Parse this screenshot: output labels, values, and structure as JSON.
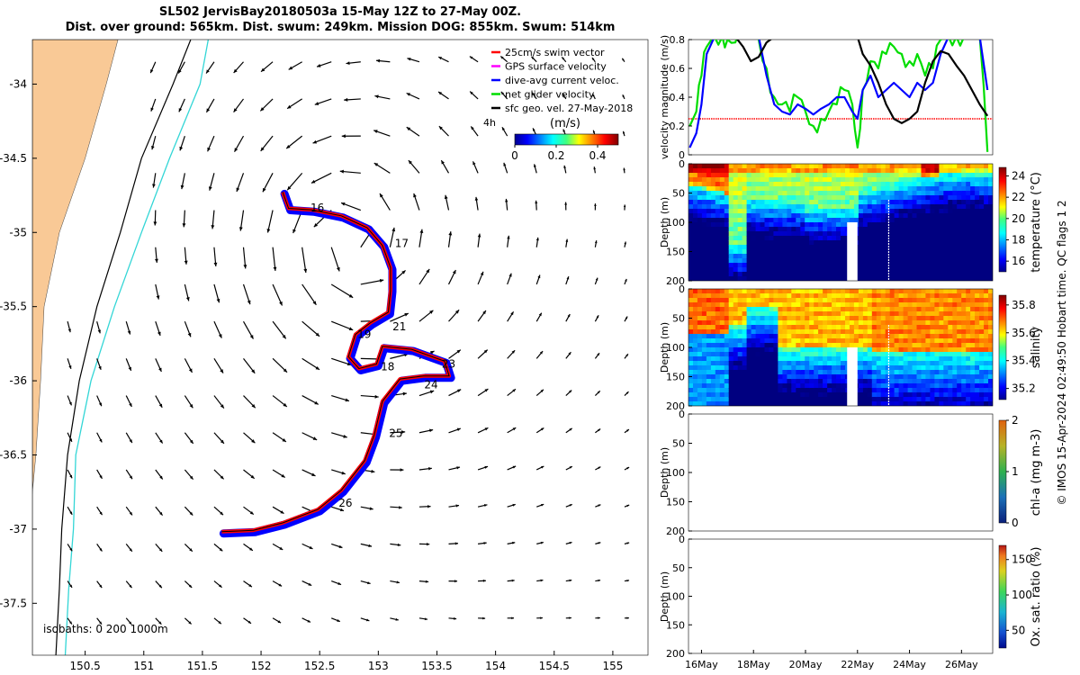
{
  "title": {
    "line1": "SL502 JervisBay20180503a 15-May 12Z to 27-May 00Z.",
    "line2": "Dist. over ground: 565km. Dist. swum: 249km. Mission DOG: 855km. Swum: 514km"
  },
  "footer": "© IMOS 15-Apr-2024 02:49:50 Hobart time. QC flags 1  2",
  "colors": {
    "land": "#f9c996",
    "isobath_200": "#000000",
    "isobath_1000": "#33d6d6",
    "track_outline": "#ff0000",
    "track_fill": "#0000ff",
    "swim_vector": "#ff0000",
    "gps_velocity": "#ff00ff",
    "dive_avg": "#0000ff",
    "net_glider": "#00dd00",
    "geo_vel": "#000000"
  },
  "chart_data": [
    {
      "type": "map",
      "x_ticks": [
        "150.5",
        "151",
        "151.5",
        "152",
        "152.5",
        "153",
        "153.5",
        "154",
        "154.5",
        "155"
      ],
      "y_ticks": [
        "-34",
        "-34.5",
        "-35",
        "-35.5",
        "-36",
        "-36.5",
        "-37",
        "-37.5"
      ],
      "xlim": [
        150.05,
        155.3
      ],
      "ylim": [
        -37.85,
        -33.7
      ],
      "legend": {
        "placement": "top-right",
        "entries": [
          {
            "label": "25cm/s swim vector",
            "color": "#ff0000"
          },
          {
            "label": "GPS surface velocity",
            "color": "#ff00ff"
          },
          {
            "label": "dive-avg current veloc.",
            "color": "#0000ff"
          },
          {
            "label": "net glider velocity",
            "color": "#00dd00"
          },
          {
            "label": "sfc geo. vel. 27-May-2018",
            "color": "#000000"
          }
        ],
        "extra_label": "4h"
      },
      "colorbar": {
        "label": "(m/s)",
        "ticks": [
          "0",
          "0.2",
          "0.4"
        ],
        "range": [
          0,
          0.5
        ]
      },
      "isobaths_label": "isobaths: 0   200  1000m",
      "day_labels": [
        {
          "day": "16",
          "lon": 152.48,
          "lat": -34.86
        },
        {
          "day": "17",
          "lon": 153.2,
          "lat": -35.1
        },
        {
          "day": "18",
          "lon": 153.08,
          "lat": -35.93
        },
        {
          "day": "19",
          "lon": 152.88,
          "lat": -35.71
        },
        {
          "day": "21",
          "lon": 153.18,
          "lat": -35.66
        },
        {
          "day": "23",
          "lon": 153.6,
          "lat": -35.91
        },
        {
          "day": "24",
          "lon": 153.45,
          "lat": -36.05
        },
        {
          "day": "25",
          "lon": 153.15,
          "lat": -36.38
        },
        {
          "day": "26",
          "lon": 152.72,
          "lat": -36.85
        }
      ],
      "track": [
        [
          152.2,
          -34.74
        ],
        [
          152.25,
          -34.85
        ],
        [
          152.45,
          -34.86
        ],
        [
          152.7,
          -34.9
        ],
        [
          152.92,
          -34.98
        ],
        [
          153.05,
          -35.1
        ],
        [
          153.12,
          -35.25
        ],
        [
          153.12,
          -35.4
        ],
        [
          153.1,
          -35.55
        ],
        [
          152.95,
          -35.62
        ],
        [
          152.82,
          -35.7
        ],
        [
          152.76,
          -35.85
        ],
        [
          152.85,
          -35.93
        ],
        [
          153.0,
          -35.9
        ],
        [
          153.05,
          -35.78
        ],
        [
          153.3,
          -35.8
        ],
        [
          153.58,
          -35.88
        ],
        [
          153.62,
          -35.98
        ],
        [
          153.4,
          -35.98
        ],
        [
          153.2,
          -36.0
        ],
        [
          153.05,
          -36.15
        ],
        [
          152.98,
          -36.38
        ],
        [
          152.9,
          -36.55
        ],
        [
          152.7,
          -36.75
        ],
        [
          152.5,
          -36.88
        ],
        [
          152.2,
          -36.97
        ],
        [
          151.95,
          -37.02
        ],
        [
          151.68,
          -37.03
        ]
      ],
      "coast_lons": [
        [
          -33.7,
          150.78
        ],
        [
          -34.0,
          150.68
        ],
        [
          -34.5,
          150.5
        ],
        [
          -35.0,
          150.28
        ],
        [
          -35.5,
          150.15
        ],
        [
          -36.0,
          150.12
        ],
        [
          -36.5,
          150.08
        ],
        [
          -37.0,
          150.02
        ],
        [
          -37.85,
          150.0
        ]
      ],
      "isobath200_lons": [
        [
          -33.7,
          151.4
        ],
        [
          -34.0,
          151.25
        ],
        [
          -34.5,
          150.98
        ],
        [
          -35.0,
          150.8
        ],
        [
          -35.5,
          150.6
        ],
        [
          -36.0,
          150.45
        ],
        [
          -36.5,
          150.35
        ],
        [
          -37.0,
          150.3
        ],
        [
          -37.4,
          150.28
        ],
        [
          -37.85,
          150.25
        ]
      ],
      "isobath1000_lons": [
        [
          -33.7,
          151.55
        ],
        [
          -34.0,
          151.48
        ],
        [
          -34.5,
          151.22
        ],
        [
          -35.0,
          150.98
        ],
        [
          -35.5,
          150.75
        ],
        [
          -36.0,
          150.55
        ],
        [
          -36.5,
          150.42
        ],
        [
          -37.0,
          150.4
        ],
        [
          -37.4,
          150.36
        ],
        [
          -37.85,
          150.33
        ]
      ],
      "eddy_center": [
        152.75,
        -35.05
      ]
    },
    {
      "type": "line",
      "ylabel": "velocity magnitude (m/s)",
      "ylim": [
        0,
        0.8
      ],
      "y_ticks": [
        "0",
        "0.2",
        "0.4",
        "0.6",
        "0.8"
      ],
      "xlim": [
        15.5,
        27.2
      ],
      "swim_level": 0.25,
      "series": [
        {
          "color": "#00dd00",
          "x": [
            15.55,
            15.8,
            16.0,
            16.2,
            16.5,
            16.8,
            17.0,
            17.3,
            17.6,
            17.9,
            18.2,
            18.5,
            18.8,
            19.1,
            19.4,
            19.7,
            20.0,
            20.3,
            20.6,
            20.9,
            21.2,
            21.5,
            21.8,
            22.0,
            22.2,
            22.5,
            22.8,
            23.1,
            23.4,
            23.7,
            24.0,
            24.3,
            24.6,
            24.9,
            25.2,
            25.5,
            25.8,
            26.1,
            26.4,
            26.7,
            27.0
          ],
          "y": [
            0.2,
            0.3,
            0.55,
            0.75,
            0.82,
            0.82,
            0.8,
            0.78,
            0.82,
            0.82,
            0.8,
            0.6,
            0.4,
            0.35,
            0.3,
            0.4,
            0.3,
            0.2,
            0.25,
            0.3,
            0.35,
            0.45,
            0.35,
            0.05,
            0.45,
            0.65,
            0.6,
            0.7,
            0.75,
            0.7,
            0.65,
            0.7,
            0.55,
            0.6,
            0.8,
            0.82,
            0.82,
            0.82,
            0.82,
            0.82,
            0.02
          ]
        },
        {
          "color": "#0000ff",
          "x": [
            15.55,
            15.8,
            16.0,
            16.2,
            16.5,
            16.8,
            17.0,
            17.3,
            17.6,
            17.9,
            18.2,
            18.5,
            18.8,
            19.1,
            19.4,
            19.7,
            20.0,
            20.3,
            20.6,
            20.9,
            21.2,
            21.5,
            21.8,
            22.0,
            22.2,
            22.5,
            22.8,
            23.1,
            23.4,
            23.7,
            24.0,
            24.3,
            24.6,
            24.9,
            25.2,
            25.5,
            25.8,
            26.1,
            26.4,
            26.7,
            27.0
          ],
          "y": [
            0.05,
            0.15,
            0.35,
            0.7,
            0.82,
            0.82,
            0.82,
            0.82,
            0.82,
            0.82,
            0.82,
            0.55,
            0.35,
            0.3,
            0.28,
            0.35,
            0.32,
            0.28,
            0.32,
            0.35,
            0.4,
            0.4,
            0.3,
            0.25,
            0.45,
            0.55,
            0.4,
            0.45,
            0.5,
            0.45,
            0.4,
            0.5,
            0.45,
            0.5,
            0.7,
            0.82,
            0.82,
            0.82,
            0.82,
            0.82,
            0.45
          ]
        },
        {
          "color": "#000000",
          "x": [
            15.55,
            15.8,
            16.0,
            16.2,
            16.5,
            16.8,
            17.0,
            17.3,
            17.6,
            17.9,
            18.2,
            18.5,
            18.8,
            19.1,
            19.4,
            19.7,
            20.0,
            20.3,
            20.6,
            20.9,
            21.2,
            21.5,
            21.8,
            22.0,
            22.2,
            22.5,
            22.8,
            23.1,
            23.4,
            23.7,
            24.0,
            24.3,
            24.6,
            24.9,
            25.2,
            25.5,
            25.8,
            26.1,
            26.4,
            26.7,
            27.0
          ],
          "y": [
            0.82,
            0.82,
            0.82,
            0.82,
            0.82,
            0.82,
            0.82,
            0.82,
            0.75,
            0.65,
            0.68,
            0.78,
            0.82,
            0.82,
            0.82,
            0.82,
            0.82,
            0.82,
            0.82,
            0.82,
            0.82,
            0.82,
            0.82,
            0.82,
            0.7,
            0.62,
            0.5,
            0.35,
            0.25,
            0.22,
            0.25,
            0.3,
            0.5,
            0.65,
            0.72,
            0.7,
            0.62,
            0.55,
            0.45,
            0.35,
            0.27
          ]
        }
      ]
    },
    {
      "type": "heatmap",
      "ylabel": "Depth (m)",
      "cbar_label": "temperature (°C)",
      "cbar_ticks": [
        "16",
        "18",
        "20",
        "22",
        "24"
      ],
      "vmin": 14.5,
      "vmax": 24.5,
      "y_ticks": [
        "0",
        "50",
        "100",
        "150",
        "200"
      ],
      "gap_days": [
        21.6,
        22.0
      ],
      "gap_depth": [
        100,
        200
      ]
    },
    {
      "type": "heatmap",
      "ylabel": "Depth (m)",
      "cbar_label": "salinity",
      "cbar_ticks": [
        "35.2",
        "35.4",
        "35.6",
        "35.8"
      ],
      "vmin": 35.1,
      "vmax": 35.9,
      "y_ticks": [
        "0",
        "50",
        "100",
        "150",
        "200"
      ],
      "gap_days": [
        21.6,
        22.0
      ],
      "gap_depth": [
        100,
        200
      ]
    },
    {
      "type": "heatmap",
      "ylabel": "Depth (m)",
      "cbar_label": "chl-a (mg m-3)",
      "cbar_ticks": [
        "0",
        "1",
        "2"
      ],
      "y_ticks": [
        "0",
        "50",
        "100",
        "150",
        "200"
      ]
    },
    {
      "type": "heatmap",
      "ylabel": "Depth (m)",
      "cbar_label": "Ox. sat. ratio (%)",
      "cbar_ticks": [
        "50",
        "100",
        "150"
      ],
      "y_ticks": [
        "0",
        "50",
        "100",
        "150",
        "200"
      ],
      "x_ticks": [
        "16May",
        "18May",
        "20May",
        "22May",
        "24May",
        "26May"
      ],
      "x_tick_days": [
        16,
        18,
        20,
        22,
        24,
        26
      ]
    }
  ]
}
